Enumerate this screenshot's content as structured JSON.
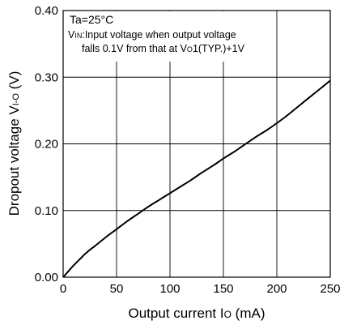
{
  "chart_data": {
    "type": "line",
    "xlabel": "Output current I",
    "xlabel_sub": "O",
    "xlabel_unit": " (mA)",
    "ylabel": "Dropout voltage V",
    "ylabel_sub": "I-O",
    "ylabel_unit": " (V)",
    "xlim": [
      0,
      250
    ],
    "ylim": [
      0,
      0.4
    ],
    "x_ticks": [
      0,
      50,
      100,
      150,
      200,
      250
    ],
    "y_ticks": [
      0.0,
      0.1,
      0.2,
      0.3,
      0.4
    ],
    "x_tick_labels": [
      "0",
      "50",
      "100",
      "150",
      "200",
      "250"
    ],
    "y_tick_labels": [
      "0.00",
      "0.10",
      "0.20",
      "0.30",
      "0.40"
    ],
    "grid": true,
    "annotations": {
      "condition": "Ta=25°C",
      "line2_main": "V",
      "line2_sub": "IN",
      "line2_rest": ":Input voltage when output voltage",
      "line3_pre": "falls 0.1V from that at V",
      "line3_sub": "O",
      "line3_rest": "1(TYP.)+1V"
    },
    "series": [
      {
        "x": [
          0,
          5,
          10,
          15,
          20,
          25,
          30,
          40,
          50,
          60,
          70,
          80,
          90,
          100,
          110,
          120,
          130,
          140,
          150,
          160,
          170,
          180,
          190,
          200,
          210,
          220,
          230,
          240,
          250
        ],
        "values": [
          0.0,
          0.009,
          0.018,
          0.026,
          0.034,
          0.041,
          0.047,
          0.06,
          0.072,
          0.084,
          0.095,
          0.106,
          0.116,
          0.126,
          0.136,
          0.146,
          0.157,
          0.167,
          0.178,
          0.188,
          0.199,
          0.21,
          0.22,
          0.231,
          0.243,
          0.256,
          0.269,
          0.282,
          0.295
        ]
      }
    ]
  }
}
